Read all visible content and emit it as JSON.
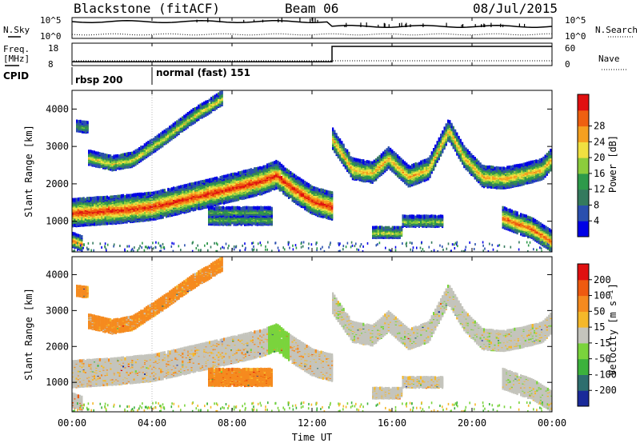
{
  "header": {
    "station": "Blackstone (fitACF)",
    "beam": "Beam 06",
    "date": "08/Jul/2015"
  },
  "strip_labels": {
    "nsky": "N.Sky",
    "nsearch": "N.Search",
    "freq_line1": "Freq.",
    "freq_line2": "[MHz]",
    "nave": "Nave",
    "cpid": "CPID"
  },
  "strip_ticks": {
    "noise_left": [
      "10^5",
      "10^0"
    ],
    "noise_right": [
      "10^5",
      "10^0"
    ],
    "freq_left": [
      "18",
      "8"
    ],
    "nave_right": [
      "60",
      "0"
    ]
  },
  "cpid_segments": [
    {
      "label": "rbsp 200",
      "start": "00:00"
    },
    {
      "label": "normal (fast) 151",
      "start": "04:00"
    }
  ],
  "axes": {
    "x_ticks": [
      "00:00",
      "04:00",
      "08:00",
      "12:00",
      "16:00",
      "20:00",
      "00:00"
    ],
    "x_label": "Time UT",
    "y_ticks": [
      "1000",
      "2000",
      "3000",
      "4000"
    ],
    "y_label": "Slant Range [km]"
  },
  "colorbars": {
    "power": {
      "label": "Power [dB]",
      "ticks": [
        "4",
        "8",
        "12",
        "16",
        "20",
        "24",
        "28"
      ],
      "colors": [
        "#0000e6",
        "#2a4fae",
        "#347a5e",
        "#2e9a4a",
        "#8ccc3c",
        "#f0e040",
        "#f5a020",
        "#ee6010",
        "#e01010"
      ]
    },
    "velocity": {
      "label": "Velocity [m s⁻¹]",
      "ticks": [
        "200",
        "100",
        "50",
        "15",
        "-15",
        "-50",
        "-100",
        "-200"
      ],
      "colors": [
        "#1a2a9a",
        "#2e6e6e",
        "#3cb23c",
        "#7ad43c",
        "#c4c4bc",
        "#f5b82a",
        "#f58a1e",
        "#ee5a10",
        "#e01010"
      ]
    }
  },
  "chart_data": {
    "type": "heatmap",
    "title": "Blackstone (fitACF)",
    "x_range": [
      "00:00",
      "24:00"
    ],
    "ylim": [
      180,
      4500
    ],
    "frequency_mhz": {
      "segments": [
        {
          "start": "00:00",
          "end": "13:00",
          "value": 10
        },
        {
          "start": "13:00",
          "end": "24:00",
          "value": 18
        }
      ]
    },
    "power_bands": [
      {
        "name": "main",
        "points": [
          [
            0.0,
            1230
          ],
          [
            2.0,
            1300
          ],
          [
            4.0,
            1400
          ],
          [
            6.0,
            1650
          ],
          [
            8.0,
            1900
          ],
          [
            9.5,
            2100
          ],
          [
            10.2,
            2250
          ],
          [
            11.0,
            1900
          ],
          [
            12.0,
            1550
          ],
          [
            13.0,
            1400
          ]
        ]
      },
      {
        "name": "upper",
        "points": [
          [
            0.8,
            2700
          ],
          [
            2.0,
            2550
          ],
          [
            3.0,
            2650
          ],
          [
            4.5,
            3200
          ],
          [
            6.0,
            3800
          ],
          [
            7.5,
            4300
          ]
        ]
      },
      {
        "name": "echo_3400",
        "points": [
          [
            0.2,
            3550
          ],
          [
            0.8,
            3500
          ]
        ]
      },
      {
        "name": "post_13",
        "points": [
          [
            13.0,
            3200
          ],
          [
            14.0,
            2400
          ],
          [
            15.0,
            2300
          ],
          [
            15.8,
            2700
          ],
          [
            16.8,
            2200
          ],
          [
            17.8,
            2400
          ],
          [
            18.8,
            3450
          ],
          [
            19.6,
            2700
          ],
          [
            20.5,
            2200
          ],
          [
            21.5,
            2150
          ],
          [
            22.5,
            2250
          ],
          [
            23.5,
            2400
          ],
          [
            24.0,
            2700
          ]
        ]
      },
      {
        "name": "echo_1000",
        "points": [
          [
            6.8,
            1050
          ],
          [
            10.0,
            1050
          ]
        ]
      },
      {
        "name": "echo_1100",
        "points": [
          [
            6.8,
            1250
          ],
          [
            10.0,
            1250
          ]
        ]
      },
      {
        "name": "echo_700",
        "points": [
          [
            15.0,
            700
          ],
          [
            16.5,
            700
          ]
        ]
      },
      {
        "name": "echo_1000b",
        "points": [
          [
            16.5,
            1000
          ],
          [
            18.5,
            1000
          ]
        ]
      },
      {
        "name": "late_near",
        "points": [
          [
            21.5,
            1100
          ],
          [
            23.0,
            800
          ],
          [
            24.0,
            450
          ]
        ]
      },
      {
        "name": "early_near",
        "points": [
          [
            0.0,
            500
          ],
          [
            0.5,
            400
          ]
        ]
      }
    ]
  }
}
